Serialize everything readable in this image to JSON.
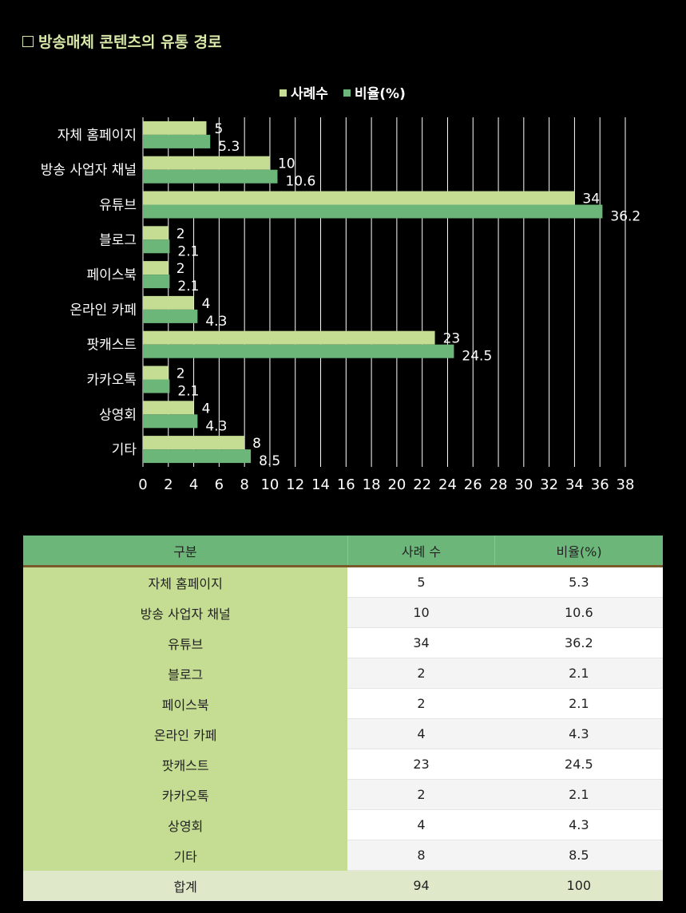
{
  "page_title": "방송매체 콘텐츠의 유통 경로",
  "chart_data": {
    "type": "bar",
    "orientation": "horizontal",
    "categories": [
      "자체 홈페이지",
      "방송 사업자 채널",
      "유튜브",
      "블로그",
      "페이스북",
      "온라인 카페",
      "팟캐스트",
      "카카오톡",
      "상영회",
      "기타"
    ],
    "series": [
      {
        "name": "사례수",
        "color": "#c5dc93",
        "values": [
          5,
          10,
          34,
          2,
          2,
          4,
          23,
          2,
          4,
          8
        ]
      },
      {
        "name": "비율(%)",
        "color": "#6db67a",
        "values": [
          5.3,
          10.6,
          36.2,
          2.1,
          2.1,
          4.3,
          24.5,
          2.1,
          4.3,
          8.5
        ]
      }
    ],
    "xlim": [
      0,
      38
    ],
    "xticks": [
      "0",
      "2",
      "4",
      "6",
      "8",
      "10",
      "12",
      "14",
      "16",
      "18",
      "20",
      "22",
      "24",
      "26",
      "28",
      "30",
      "32",
      "34",
      "36",
      "38"
    ],
    "value_labels": [
      [
        "5",
        "10",
        "34",
        "2",
        "2",
        "4",
        "23",
        "2",
        "4",
        "8"
      ],
      [
        "5.3",
        "10.6",
        "36.2",
        "2.1",
        "2.1",
        "4.3",
        "24.5",
        "2.1",
        "4.3",
        "8.5"
      ]
    ],
    "grid": true,
    "legend_position": "top"
  },
  "table": {
    "headers": [
      "구분",
      "사례 수",
      "비율(%)"
    ],
    "rows": [
      [
        "자체 홈페이지",
        "5",
        "5.3"
      ],
      [
        "방송 사업자 채널",
        "10",
        "10.6"
      ],
      [
        "유튜브",
        "34",
        "36.2"
      ],
      [
        "블로그",
        "2",
        "2.1"
      ],
      [
        "페이스북",
        "2",
        "2.1"
      ],
      [
        "온라인 카페",
        "4",
        "4.3"
      ],
      [
        "팟캐스트",
        "23",
        "24.5"
      ],
      [
        "카카오톡",
        "2",
        "2.1"
      ],
      [
        "상영회",
        "4",
        "4.3"
      ],
      [
        "기타",
        "8",
        "8.5"
      ]
    ],
    "total": [
      "합계",
      "94",
      "100"
    ]
  }
}
